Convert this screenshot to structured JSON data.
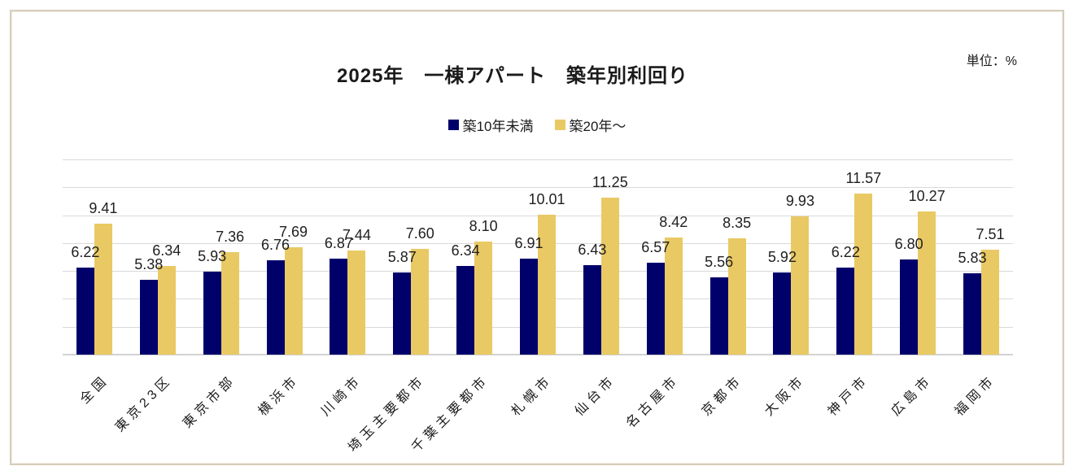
{
  "header": {
    "title": "2025年　一棟アパート　築年別利回り",
    "unit_label": "単位：%"
  },
  "legend": {
    "items": [
      {
        "label": "築10年未満",
        "color": "#00006b"
      },
      {
        "label": "築20年～",
        "color": "#e9c963"
      }
    ]
  },
  "chart_data": {
    "type": "bar",
    "title": "2025年　一棟アパート　築年別利回り",
    "unit": "%",
    "categories": [
      "全国",
      "東京23区",
      "東京市部",
      "横浜市",
      "川崎市",
      "埼玉主要都市",
      "千葉主要都市",
      "札幌市",
      "仙台市",
      "名古屋市",
      "京都市",
      "大阪市",
      "神戸市",
      "広島市",
      "福岡市"
    ],
    "series": [
      {
        "name": "築10年未満",
        "color": "#00006b",
        "values": [
          6.22,
          5.38,
          5.93,
          6.76,
          6.87,
          5.87,
          6.34,
          6.91,
          6.43,
          6.57,
          5.56,
          5.92,
          6.22,
          6.8,
          5.83
        ]
      },
      {
        "name": "築20年～",
        "color": "#e9c963",
        "values": [
          9.41,
          6.34,
          7.36,
          7.69,
          7.44,
          7.6,
          8.1,
          10.01,
          11.25,
          8.42,
          8.35,
          9.93,
          11.57,
          10.27,
          7.51
        ]
      }
    ],
    "ylim": [
      0,
      14
    ],
    "grid_step": 2,
    "grid": "horizontal",
    "legend_position": "top",
    "value_labels": true,
    "value_label_decimals": 2,
    "gridline_color": "#d9d9d9",
    "frame_border_color": "#d6cdbb"
  }
}
